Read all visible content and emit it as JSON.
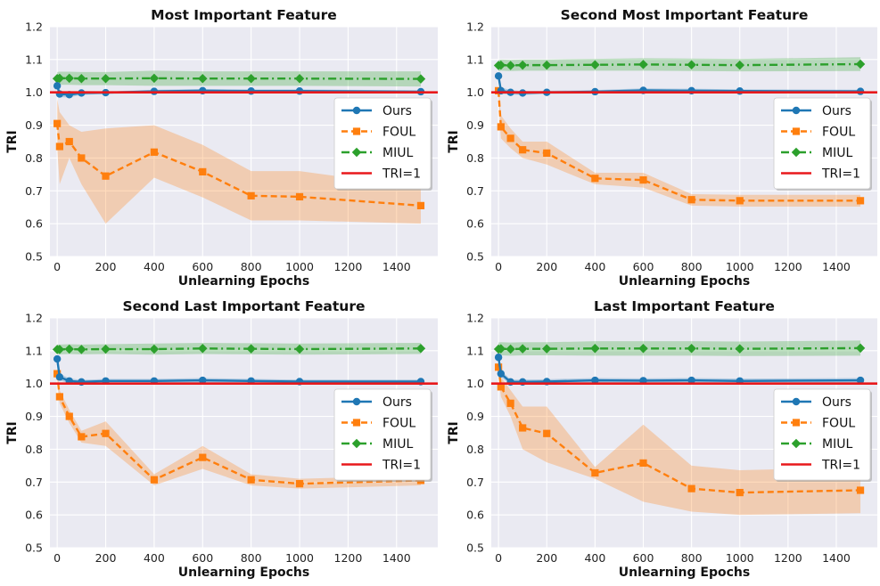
{
  "chart_data": [
    {
      "type": "line",
      "title": "Most Important Feature",
      "xlabel": "Unlearning Epochs",
      "ylabel": "TRI",
      "xlim": [
        -30,
        1570
      ],
      "ylim": [
        0.5,
        1.2
      ],
      "xticks": [
        0,
        200,
        400,
        600,
        800,
        1000,
        1200,
        1400
      ],
      "yticks": [
        0.5,
        0.6,
        0.7,
        0.8,
        0.9,
        1.0,
        1.1,
        1.2
      ],
      "grid": true,
      "legend_position": "center-right",
      "x": [
        0,
        10,
        50,
        100,
        200,
        400,
        600,
        800,
        1000,
        1500
      ],
      "series": [
        {
          "name": "Ours",
          "color": "#1f77b4",
          "marker": "circle",
          "style": "solid",
          "values": [
            1.02,
            0.995,
            0.993,
            0.998,
            0.999,
            1.003,
            1.005,
            1.004,
            1.004,
            1.002
          ],
          "lower": [
            1.0,
            0.985,
            0.985,
            0.992,
            0.995,
            0.998,
            1.0,
            0.999,
            0.999,
            0.998
          ],
          "upper": [
            1.04,
            1.005,
            1.001,
            1.004,
            1.003,
            1.008,
            1.01,
            1.009,
            1.009,
            1.006
          ]
        },
        {
          "name": "FOUL",
          "color": "#ff7f0e",
          "marker": "square",
          "style": "dashed",
          "values": [
            0.905,
            0.835,
            0.85,
            0.8,
            0.745,
            0.818,
            0.758,
            0.685,
            0.682,
            0.655
          ],
          "lower": [
            0.83,
            0.72,
            0.8,
            0.72,
            0.6,
            0.74,
            0.68,
            0.61,
            0.61,
            0.6
          ],
          "upper": [
            0.98,
            0.94,
            0.9,
            0.88,
            0.89,
            0.9,
            0.84,
            0.76,
            0.76,
            0.71
          ]
        },
        {
          "name": "MIUL",
          "color": "#2ca02c",
          "marker": "diamond",
          "style": "dashdot",
          "values": [
            1.042,
            1.043,
            1.043,
            1.042,
            1.042,
            1.043,
            1.042,
            1.042,
            1.042,
            1.041
          ],
          "lower": [
            1.022,
            1.023,
            1.023,
            1.022,
            1.022,
            1.02,
            1.02,
            1.02,
            1.02,
            1.018
          ],
          "upper": [
            1.062,
            1.063,
            1.063,
            1.062,
            1.062,
            1.066,
            1.064,
            1.064,
            1.064,
            1.064
          ]
        },
        {
          "name": "TRI=1",
          "color": "#e8191c",
          "marker": "none",
          "style": "solid",
          "hline": 1.0
        }
      ]
    },
    {
      "type": "line",
      "title": "Second Most Important Feature",
      "xlabel": "Unlearning Epochs",
      "ylabel": "TRI",
      "xlim": [
        -30,
        1570
      ],
      "ylim": [
        0.5,
        1.2
      ],
      "xticks": [
        0,
        200,
        400,
        600,
        800,
        1000,
        1200,
        1400
      ],
      "yticks": [
        0.5,
        0.6,
        0.7,
        0.8,
        0.9,
        1.0,
        1.1,
        1.2
      ],
      "grid": true,
      "legend_position": "center-right",
      "x": [
        0,
        10,
        50,
        100,
        200,
        400,
        600,
        800,
        1000,
        1500
      ],
      "series": [
        {
          "name": "Ours",
          "color": "#1f77b4",
          "marker": "circle",
          "style": "solid",
          "values": [
            1.05,
            1.005,
            1.0,
            0.998,
            1.0,
            1.002,
            1.006,
            1.005,
            1.004,
            1.003
          ],
          "lower": [
            1.03,
            0.995,
            0.993,
            0.992,
            0.995,
            0.997,
            1.0,
            0.999,
            0.999,
            0.998
          ],
          "upper": [
            1.07,
            1.015,
            1.007,
            1.004,
            1.005,
            1.007,
            1.012,
            1.011,
            1.009,
            1.008
          ]
        },
        {
          "name": "FOUL",
          "color": "#ff7f0e",
          "marker": "square",
          "style": "dashed",
          "values": [
            1.005,
            0.895,
            0.86,
            0.825,
            0.815,
            0.738,
            0.733,
            0.673,
            0.67,
            0.67
          ],
          "lower": [
            0.99,
            0.86,
            0.83,
            0.8,
            0.78,
            0.72,
            0.71,
            0.655,
            0.652,
            0.652
          ],
          "upper": [
            1.02,
            0.93,
            0.89,
            0.85,
            0.85,
            0.755,
            0.755,
            0.69,
            0.688,
            0.688
          ]
        },
        {
          "name": "MIUL",
          "color": "#2ca02c",
          "marker": "diamond",
          "style": "dashdot",
          "values": [
            1.082,
            1.083,
            1.082,
            1.083,
            1.083,
            1.084,
            1.085,
            1.084,
            1.083,
            1.086
          ],
          "lower": [
            1.065,
            1.066,
            1.065,
            1.066,
            1.066,
            1.066,
            1.066,
            1.065,
            1.064,
            1.065
          ],
          "upper": [
            1.099,
            1.1,
            1.099,
            1.1,
            1.1,
            1.102,
            1.104,
            1.103,
            1.102,
            1.107
          ]
        },
        {
          "name": "TRI=1",
          "color": "#e8191c",
          "marker": "none",
          "style": "solid",
          "hline": 1.0
        }
      ]
    },
    {
      "type": "line",
      "title": "Second Last Important Feature",
      "xlabel": "Unlearning Epochs",
      "ylabel": "TRI",
      "xlim": [
        -30,
        1570
      ],
      "ylim": [
        0.5,
        1.2
      ],
      "xticks": [
        0,
        200,
        400,
        600,
        800,
        1000,
        1200,
        1400
      ],
      "yticks": [
        0.5,
        0.6,
        0.7,
        0.8,
        0.9,
        1.0,
        1.1,
        1.2
      ],
      "grid": true,
      "legend_position": "center-right",
      "x": [
        0,
        10,
        50,
        100,
        200,
        400,
        600,
        800,
        1000,
        1500
      ],
      "series": [
        {
          "name": "Ours",
          "color": "#1f77b4",
          "marker": "circle",
          "style": "solid",
          "values": [
            1.075,
            1.02,
            1.008,
            1.005,
            1.008,
            1.008,
            1.01,
            1.008,
            1.006,
            1.006
          ],
          "lower": [
            1.06,
            1.01,
            1.0,
            0.999,
            1.002,
            1.002,
            1.003,
            1.002,
            1.0,
            1.0
          ],
          "upper": [
            1.09,
            1.03,
            1.016,
            1.011,
            1.014,
            1.014,
            1.017,
            1.014,
            1.012,
            1.012
          ]
        },
        {
          "name": "FOUL",
          "color": "#ff7f0e",
          "marker": "square",
          "style": "dashed",
          "values": [
            1.03,
            0.96,
            0.9,
            0.838,
            0.848,
            0.707,
            0.775,
            0.707,
            0.695,
            0.705
          ],
          "lower": [
            1.01,
            0.94,
            0.88,
            0.82,
            0.81,
            0.69,
            0.74,
            0.69,
            0.68,
            0.69
          ],
          "upper": [
            1.05,
            0.98,
            0.92,
            0.856,
            0.885,
            0.724,
            0.81,
            0.724,
            0.71,
            0.72
          ]
        },
        {
          "name": "MIUL",
          "color": "#2ca02c",
          "marker": "diamond",
          "style": "dashdot",
          "values": [
            1.104,
            1.104,
            1.105,
            1.104,
            1.105,
            1.105,
            1.107,
            1.106,
            1.105,
            1.107
          ],
          "lower": [
            1.089,
            1.089,
            1.09,
            1.089,
            1.09,
            1.088,
            1.09,
            1.089,
            1.088,
            1.09
          ],
          "upper": [
            1.119,
            1.119,
            1.12,
            1.119,
            1.12,
            1.122,
            1.124,
            1.123,
            1.122,
            1.124
          ]
        },
        {
          "name": "TRI=1",
          "color": "#e8191c",
          "marker": "none",
          "style": "solid",
          "hline": 1.0
        }
      ]
    },
    {
      "type": "line",
      "title": "Last Important Feature",
      "xlabel": "Unlearning Epochs",
      "ylabel": "TRI",
      "xlim": [
        -30,
        1570
      ],
      "ylim": [
        0.5,
        1.2
      ],
      "xticks": [
        0,
        200,
        400,
        600,
        800,
        1000,
        1200,
        1400
      ],
      "yticks": [
        0.5,
        0.6,
        0.7,
        0.8,
        0.9,
        1.0,
        1.1,
        1.2
      ],
      "grid": true,
      "legend_position": "center-right",
      "x": [
        0,
        10,
        50,
        100,
        200,
        400,
        600,
        800,
        1000,
        1500
      ],
      "series": [
        {
          "name": "Ours",
          "color": "#1f77b4",
          "marker": "circle",
          "style": "solid",
          "values": [
            1.08,
            1.03,
            1.005,
            1.005,
            1.006,
            1.01,
            1.009,
            1.01,
            1.008,
            1.01
          ],
          "lower": [
            1.065,
            1.02,
            0.998,
            0.998,
            0.999,
            1.003,
            1.002,
            1.003,
            1.001,
            1.003
          ],
          "upper": [
            1.095,
            1.04,
            1.012,
            1.012,
            1.013,
            1.017,
            1.016,
            1.017,
            1.015,
            1.017
          ]
        },
        {
          "name": "FOUL",
          "color": "#ff7f0e",
          "marker": "square",
          "style": "dashed",
          "values": [
            1.05,
            0.99,
            0.94,
            0.865,
            0.848,
            0.728,
            0.758,
            0.68,
            0.668,
            0.675
          ],
          "lower": [
            1.03,
            0.96,
            0.9,
            0.8,
            0.76,
            0.71,
            0.64,
            0.61,
            0.6,
            0.605
          ],
          "upper": [
            1.07,
            1.02,
            0.98,
            0.93,
            0.93,
            0.746,
            0.875,
            0.75,
            0.736,
            0.745
          ]
        },
        {
          "name": "MIUL",
          "color": "#2ca02c",
          "marker": "diamond",
          "style": "dashdot",
          "values": [
            1.105,
            1.106,
            1.105,
            1.106,
            1.106,
            1.107,
            1.107,
            1.107,
            1.106,
            1.108
          ],
          "lower": [
            1.085,
            1.086,
            1.085,
            1.086,
            1.086,
            1.085,
            1.085,
            1.085,
            1.084,
            1.085
          ],
          "upper": [
            1.125,
            1.126,
            1.125,
            1.126,
            1.126,
            1.129,
            1.129,
            1.129,
            1.128,
            1.131
          ]
        },
        {
          "name": "TRI=1",
          "color": "#e8191c",
          "marker": "none",
          "style": "solid",
          "hline": 1.0
        }
      ]
    }
  ]
}
